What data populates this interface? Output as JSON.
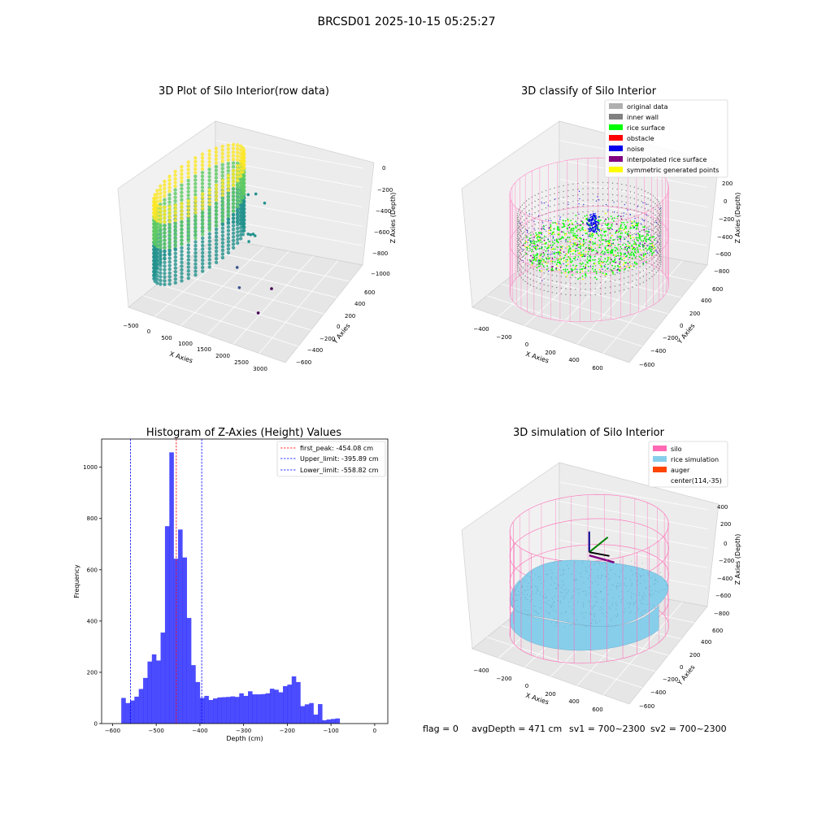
{
  "figure": {
    "suptitle": "BRCSD01 2025-10-15 05:25:27",
    "footer": {
      "flag": "flag = 0",
      "avg_depth": "avgDepth = 471 cm",
      "sv1": "sv1 = 700~2300",
      "sv2": "sv2 = 700~2300"
    }
  },
  "chart_data": [
    {
      "type": "scatter",
      "projection": "3d",
      "title": "3D Plot of Silo Interior(row data)",
      "xlabel": "X Axies",
      "ylabel": "Y Axies",
      "zlabel": "Z Axies (Depth)",
      "x_ticks": [
        "−500",
        "0",
        "500",
        "1000",
        "1500",
        "2000",
        "2500",
        "3000"
      ],
      "y_ticks": [
        "600",
        "400",
        "200",
        "0",
        "−200",
        "−400",
        "−600"
      ],
      "z_ticks": [
        "0",
        "−200",
        "−400",
        "−600",
        "−800",
        "−1000"
      ],
      "xlim": [
        -650,
        3200
      ],
      "ylim": [
        -700,
        700
      ],
      "zlim": [
        -1050,
        50
      ],
      "colormap": [
        "#fde725",
        "#5ec962",
        "#21918c",
        "#3b528b",
        "#440154"
      ],
      "grid": true,
      "series": [
        {
          "description": "ring wall points",
          "ring": {
            "center_x": 114,
            "center_y": -35,
            "radius": 620,
            "z_top": -70,
            "z_bottom": -800
          }
        },
        {
          "description": "outlier points",
          "points": [
            [
              450,
              550,
              -500
            ],
            [
              650,
              550,
              -480
            ],
            [
              800,
              600,
              -580
            ],
            [
              1000,
              250,
              -700
            ],
            [
              1150,
              230,
              -690
            ],
            [
              1150,
              200,
              -660
            ],
            [
              1100,
              150,
              -640
            ],
            [
              1200,
              100,
              -680
            ],
            [
              1300,
              -150,
              -800
            ],
            [
              2200,
              -150,
              -940
            ],
            [
              1600,
              -300,
              -900
            ],
            [
              2500,
              -550,
              -960
            ]
          ]
        }
      ]
    },
    {
      "type": "scatter",
      "projection": "3d",
      "title": "3D classify of Silo Interior",
      "xlabel": "X Axies",
      "ylabel": "Y Axies",
      "zlabel": "Z Axies (Depth)",
      "x_ticks": [
        "−400",
        "−200",
        "0",
        "200",
        "400",
        "600"
      ],
      "y_ticks": [
        "600",
        "400",
        "200",
        "0",
        "−200",
        "−400",
        "−600"
      ],
      "z_ticks": [
        "200",
        "0",
        "−200",
        "−400",
        "−600",
        "−800"
      ],
      "xlim": [
        -560,
        760
      ],
      "ylim": [
        -700,
        700
      ],
      "zlim": [
        -900,
        300
      ],
      "grid": true,
      "legend_position": "top-right",
      "legend": [
        {
          "label": "original data",
          "color": "#b0b0b0"
        },
        {
          "label": "inner wall",
          "color": "#808080"
        },
        {
          "label": "rice surface",
          "color": "#00ff00"
        },
        {
          "label": "obstacle",
          "color": "#ff0000"
        },
        {
          "label": "noise",
          "color": "#0000ee"
        },
        {
          "label": "interpolated rice surface",
          "color": "#800080"
        },
        {
          "label": "symmetric generated points",
          "color": "#ffff00"
        }
      ],
      "silo": {
        "center_x": 114,
        "center_y": -35,
        "radius": 620,
        "z_top": 100,
        "z_bottom": -900,
        "wireframe_color": "#ff8cc8"
      }
    },
    {
      "type": "bar",
      "title": "Histogram of Z-Axies (Height) Values",
      "xlabel": "Depth (cm)",
      "ylabel": "Frequency",
      "xlim": [
        -625,
        30
      ],
      "ylim": [
        0,
        1110
      ],
      "x_ticks": [
        -600,
        -500,
        -400,
        -300,
        -200,
        -100,
        0
      ],
      "y_ticks": [
        0,
        200,
        400,
        600,
        800,
        1000
      ],
      "bar_color": "#0000ff",
      "bar_opacity": 0.7,
      "bin_width": 10,
      "bins": [
        {
          "left": -580,
          "count": 100
        },
        {
          "left": -570,
          "count": 80
        },
        {
          "left": -560,
          "count": 90
        },
        {
          "left": -550,
          "count": 105
        },
        {
          "left": -540,
          "count": 135
        },
        {
          "left": -530,
          "count": 178
        },
        {
          "left": -520,
          "count": 242
        },
        {
          "left": -510,
          "count": 270
        },
        {
          "left": -500,
          "count": 246
        },
        {
          "left": -490,
          "count": 355
        },
        {
          "left": -480,
          "count": 770
        },
        {
          "left": -470,
          "count": 1058
        },
        {
          "left": -460,
          "count": 643
        },
        {
          "left": -450,
          "count": 757
        },
        {
          "left": -440,
          "count": 648
        },
        {
          "left": -430,
          "count": 412
        },
        {
          "left": -420,
          "count": 228
        },
        {
          "left": -410,
          "count": 162
        },
        {
          "left": -400,
          "count": 100
        },
        {
          "left": -390,
          "count": 108
        },
        {
          "left": -380,
          "count": 92
        },
        {
          "left": -370,
          "count": 98
        },
        {
          "left": -360,
          "count": 102
        },
        {
          "left": -350,
          "count": 103
        },
        {
          "left": -340,
          "count": 104
        },
        {
          "left": -330,
          "count": 106
        },
        {
          "left": -320,
          "count": 104
        },
        {
          "left": -310,
          "count": 118
        },
        {
          "left": -300,
          "count": 108
        },
        {
          "left": -290,
          "count": 126
        },
        {
          "left": -280,
          "count": 114
        },
        {
          "left": -270,
          "count": 114
        },
        {
          "left": -260,
          "count": 115
        },
        {
          "left": -250,
          "count": 118
        },
        {
          "left": -240,
          "count": 136
        },
        {
          "left": -230,
          "count": 132
        },
        {
          "left": -220,
          "count": 122
        },
        {
          "left": -210,
          "count": 146
        },
        {
          "left": -200,
          "count": 152
        },
        {
          "left": -190,
          "count": 184
        },
        {
          "left": -180,
          "count": 162
        },
        {
          "left": -170,
          "count": 68
        },
        {
          "left": -160,
          "count": 75
        },
        {
          "left": -150,
          "count": 80
        },
        {
          "left": -140,
          "count": 35
        },
        {
          "left": -130,
          "count": 76
        },
        {
          "left": -120,
          "count": 13
        },
        {
          "left": -110,
          "count": 16
        },
        {
          "left": -100,
          "count": 18
        },
        {
          "left": -90,
          "count": 20
        }
      ],
      "vlines": [
        {
          "label": "first_peak: -454.08 cm",
          "x": -454.08,
          "color": "#ff0000"
        },
        {
          "label": "Upper_limit: -395.89 cm",
          "x": -395.89,
          "color": "#0000ff"
        },
        {
          "label": "Lower_limit: -558.82 cm",
          "x": -558.82,
          "color": "#0000ff"
        }
      ],
      "legend_position": "top-right"
    },
    {
      "type": "area",
      "projection": "3d",
      "title": "3D simulation of Silo Interior",
      "xlabel": "X Axies",
      "ylabel": "Y Axies",
      "zlabel": "Z Axies (Depth)",
      "x_ticks": [
        "−400",
        "−200",
        "0",
        "200",
        "400",
        "600"
      ],
      "y_ticks": [
        "600",
        "400",
        "200",
        "0",
        "−200",
        "−400",
        "−600"
      ],
      "z_ticks": [
        "400",
        "200",
        "0",
        "−200",
        "−400",
        "−600",
        "−800"
      ],
      "xlim": [
        -560,
        760
      ],
      "ylim": [
        -700,
        700
      ],
      "zlim": [
        -900,
        450
      ],
      "grid": true,
      "legend_position": "top-right",
      "legend": [
        {
          "label": "silo",
          "color": "#ff69b4"
        },
        {
          "label": "rice simulation",
          "color": "#87ceeb"
        },
        {
          "label": "auger",
          "color": "#ff4500"
        },
        {
          "label": "center(114,-35)",
          "color": ""
        }
      ],
      "center": [
        114,
        -35
      ],
      "surface_depth": -471
    }
  ]
}
